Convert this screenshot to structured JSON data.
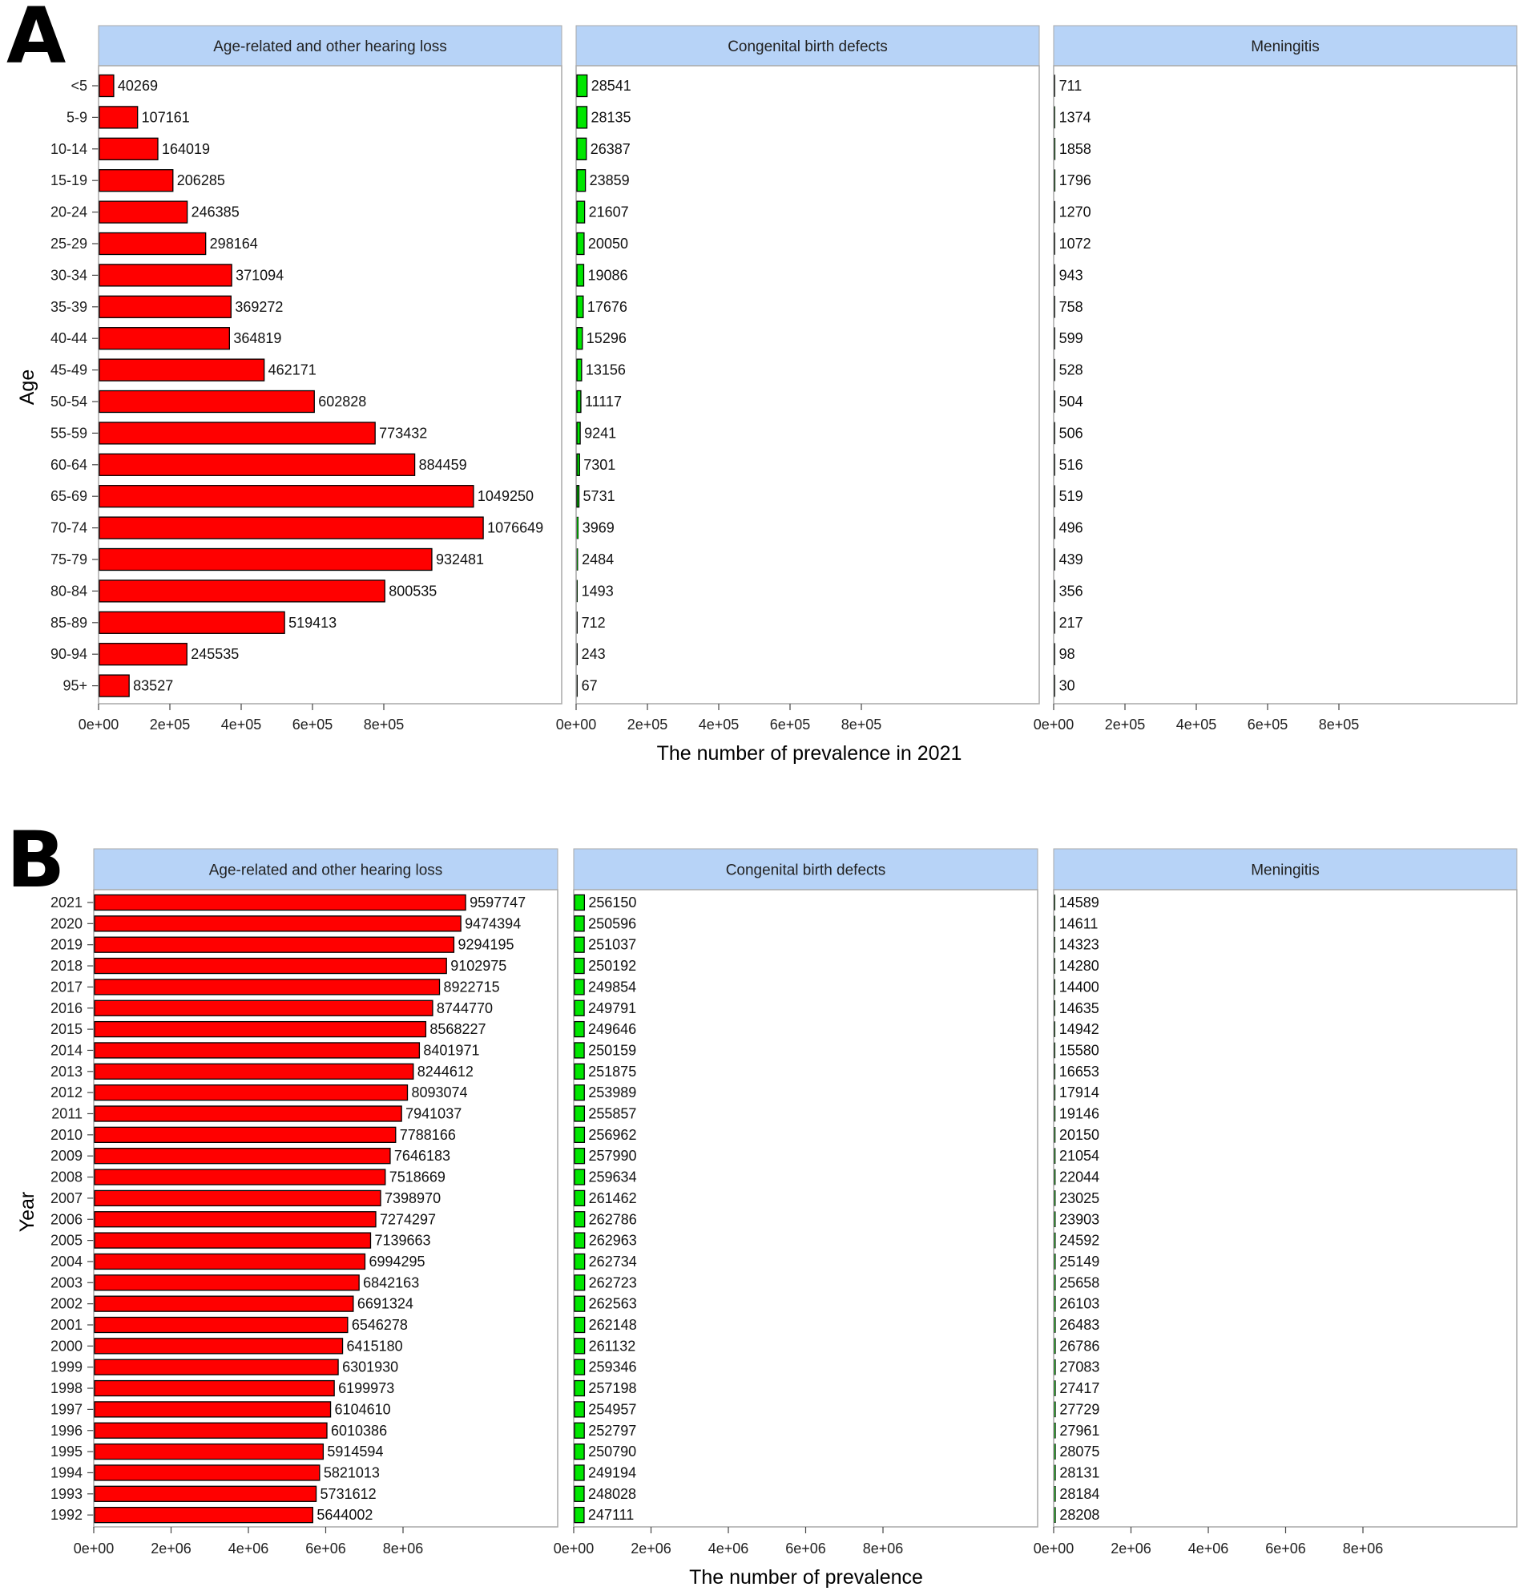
{
  "chart_data": [
    {
      "type": "bar",
      "orientation": "horizontal",
      "panel_label": "A",
      "title": "",
      "ylabel": "Age",
      "xlabel": "The number of prevalence in 2021",
      "xlim": [
        0,
        1300000
      ],
      "xticks": [
        0,
        200000,
        400000,
        600000,
        800000
      ],
      "xtick_labels": [
        "0e+00",
        "2e+05",
        "4e+05",
        "6e+05",
        "8e+05"
      ],
      "categories": [
        "<5",
        "5-9",
        "10-14",
        "15-19",
        "20-24",
        "25-29",
        "30-34",
        "35-39",
        "40-44",
        "45-49",
        "50-54",
        "55-59",
        "60-64",
        "65-69",
        "70-74",
        "75-79",
        "80-84",
        "85-89",
        "90-94",
        "95+"
      ],
      "series": [
        {
          "name": "Age-related and other hearing loss",
          "color": "#ff0000",
          "values": [
            40269,
            107161,
            164019,
            206285,
            246385,
            298164,
            371094,
            369272,
            364819,
            462171,
            602828,
            773432,
            884459,
            1049250,
            1076649,
            932481,
            800535,
            519413,
            245535,
            83527
          ]
        },
        {
          "name": "Congenital birth defects",
          "color": "#00e600",
          "values": [
            28541,
            28135,
            26387,
            23859,
            21607,
            20050,
            19086,
            17676,
            15296,
            13156,
            11117,
            9241,
            7301,
            5731,
            3969,
            2484,
            1493,
            712,
            243,
            67
          ]
        },
        {
          "name": "Meningitis",
          "color": "#00e600",
          "values": [
            711,
            1374,
            1858,
            1796,
            1270,
            1072,
            943,
            758,
            599,
            528,
            504,
            506,
            516,
            519,
            496,
            439,
            356,
            217,
            98,
            30
          ]
        }
      ]
    },
    {
      "type": "bar",
      "orientation": "horizontal",
      "panel_label": "B",
      "title": "",
      "ylabel": "Year",
      "xlabel": "The number of prevalence",
      "xlim": [
        0,
        12000000
      ],
      "xticks": [
        0,
        2000000,
        4000000,
        6000000,
        8000000
      ],
      "xtick_labels": [
        "0e+00",
        "2e+06",
        "4e+06",
        "6e+06",
        "8e+06"
      ],
      "categories": [
        "2021",
        "2020",
        "2019",
        "2018",
        "2017",
        "2016",
        "2015",
        "2014",
        "2013",
        "2012",
        "2011",
        "2010",
        "2009",
        "2008",
        "2007",
        "2006",
        "2005",
        "2004",
        "2003",
        "2002",
        "2001",
        "2000",
        "1999",
        "1998",
        "1997",
        "1996",
        "1995",
        "1994",
        "1993",
        "1992"
      ],
      "series": [
        {
          "name": "Age-related and other hearing loss",
          "color": "#ff0000",
          "values": [
            9597747,
            9474394,
            9294195,
            9102975,
            8922715,
            8744770,
            8568227,
            8401971,
            8244612,
            8093074,
            7941037,
            7788166,
            7646183,
            7518669,
            7398970,
            7274297,
            7139663,
            6994295,
            6842163,
            6691324,
            6546278,
            6415180,
            6301930,
            6199973,
            6104610,
            6010386,
            5914594,
            5821013,
            5731612,
            5644002
          ]
        },
        {
          "name": "Congenital birth defects",
          "color": "#00e600",
          "values": [
            256150,
            250596,
            251037,
            250192,
            249854,
            249791,
            249646,
            250159,
            251875,
            253989,
            255857,
            256962,
            257990,
            259634,
            261462,
            262786,
            262963,
            262734,
            262723,
            262563,
            262148,
            261132,
            259346,
            257198,
            254957,
            252797,
            250790,
            249194,
            248028,
            247111
          ]
        },
        {
          "name": "Meningitis",
          "color": "#00e600",
          "values": [
            14589,
            14611,
            14323,
            14280,
            14400,
            14635,
            14942,
            15580,
            16653,
            17914,
            19146,
            20150,
            21054,
            22044,
            23025,
            23903,
            24592,
            25149,
            25658,
            26103,
            26483,
            26786,
            27083,
            27417,
            27729,
            27961,
            28075,
            28131,
            28184,
            28208
          ]
        }
      ]
    }
  ]
}
